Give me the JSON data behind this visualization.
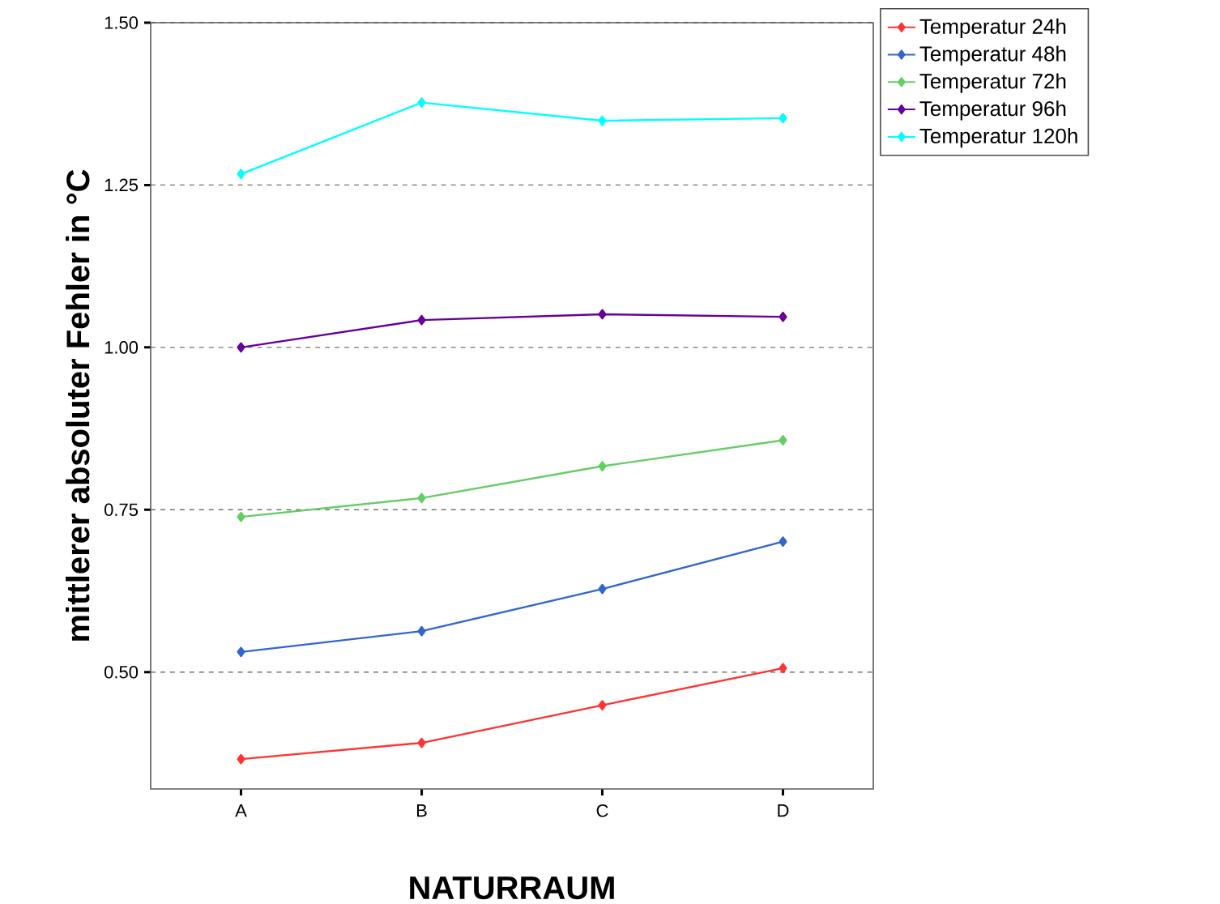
{
  "chart_data": {
    "type": "line",
    "xlabel": "NATURRAUM",
    "ylabel": "mittlerer absoluter Fehler in °C",
    "categories": [
      "A",
      "B",
      "C",
      "D"
    ],
    "series": [
      {
        "name": "Temperatur 24h",
        "color": "#ff3333",
        "values": [
          0.366,
          0.391,
          0.449,
          0.506
        ]
      },
      {
        "name": "Temperatur 48h",
        "color": "#3366cc",
        "values": [
          0.531,
          0.563,
          0.628,
          0.701
        ]
      },
      {
        "name": "Temperatur 72h",
        "color": "#66cc66",
        "values": [
          0.739,
          0.768,
          0.817,
          0.857
        ]
      },
      {
        "name": "Temperatur 96h",
        "color": "#660099",
        "values": [
          1.0,
          1.042,
          1.051,
          1.047
        ]
      },
      {
        "name": "Temperatur 120h",
        "color": "#00ffff",
        "values": [
          1.267,
          1.377,
          1.349,
          1.353
        ]
      }
    ],
    "ylim": [
      0.32,
      1.5
    ],
    "yticks": [
      {
        "value": 0.5,
        "label": "0.50"
      },
      {
        "value": 0.75,
        "label": "0.75"
      },
      {
        "value": 1.0,
        "label": "1.00"
      },
      {
        "value": 1.25,
        "label": "1.25"
      },
      {
        "value": 1.5,
        "label": "1.50"
      }
    ],
    "grid": "y",
    "legend": "right",
    "marker": "diamond",
    "line_style": "solid"
  }
}
